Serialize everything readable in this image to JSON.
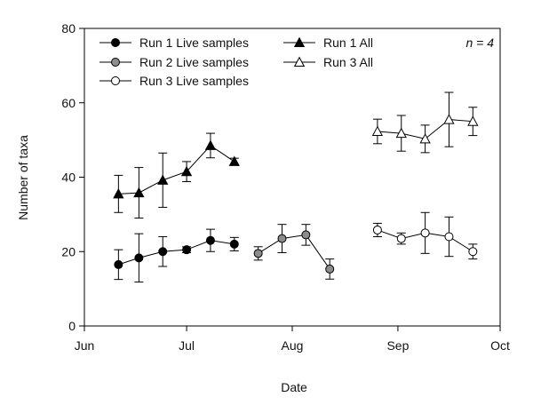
{
  "chart_data": {
    "type": "line",
    "title": "",
    "xlabel": "Date",
    "ylabel": "Number of taxa",
    "ylim": [
      0,
      80
    ],
    "yticks": [
      0,
      20,
      40,
      60,
      80
    ],
    "xlim_days": [
      0,
      122
    ],
    "xticks": [
      {
        "label": "Jun",
        "day": 0
      },
      {
        "label": "Jul",
        "day": 30
      },
      {
        "label": "Aug",
        "day": 61
      },
      {
        "label": "Sep",
        "day": 92
      },
      {
        "label": "Oct",
        "day": 122
      }
    ],
    "x_unit": "days since 1 Jun",
    "annotation": "n = 4",
    "legend_position": "top",
    "series": [
      {
        "name": "Run 1 Live samples",
        "marker": "circle",
        "fill": "#000000",
        "points": [
          {
            "x": 10,
            "y": 16.5,
            "err": 4.0
          },
          {
            "x": 16,
            "y": 18.3,
            "err": 6.5
          },
          {
            "x": 23,
            "y": 20.0,
            "err": 4.0
          },
          {
            "x": 30,
            "y": 20.5,
            "err": 0.8
          },
          {
            "x": 37,
            "y": 23.0,
            "err": 3.0
          },
          {
            "x": 44,
            "y": 22.0,
            "err": 1.8
          }
        ]
      },
      {
        "name": "Run 2 Live samples",
        "marker": "circle",
        "fill": "#8c8c8c",
        "points": [
          {
            "x": 51,
            "y": 19.5,
            "err": 1.8
          },
          {
            "x": 58,
            "y": 23.5,
            "err": 3.8
          },
          {
            "x": 65,
            "y": 24.5,
            "err": 2.8
          },
          {
            "x": 72,
            "y": 15.3,
            "err": 2.7
          }
        ]
      },
      {
        "name": "Run 3 Live samples",
        "marker": "circle",
        "fill": "#ffffff",
        "points": [
          {
            "x": 86,
            "y": 25.8,
            "err": 1.8
          },
          {
            "x": 93,
            "y": 23.5,
            "err": 1.5
          },
          {
            "x": 100,
            "y": 25.0,
            "err": 5.5
          },
          {
            "x": 107,
            "y": 24.0,
            "err": 5.3
          },
          {
            "x": 114,
            "y": 20.0,
            "err": 2.0
          }
        ]
      },
      {
        "name": "Run 1 All",
        "marker": "triangle",
        "fill": "#000000",
        "points": [
          {
            "x": 10,
            "y": 35.5,
            "err": 5.0
          },
          {
            "x": 16,
            "y": 35.8,
            "err": 6.8
          },
          {
            "x": 23,
            "y": 39.2,
            "err": 7.3
          },
          {
            "x": 30,
            "y": 41.5,
            "err": 2.7
          },
          {
            "x": 37,
            "y": 48.5,
            "err": 3.3
          },
          {
            "x": 44,
            "y": 44.2,
            "err": 0.9
          }
        ]
      },
      {
        "name": "Run 3 All",
        "marker": "triangle",
        "fill": "#ffffff",
        "points": [
          {
            "x": 86,
            "y": 52.3,
            "err": 3.3
          },
          {
            "x": 93,
            "y": 51.8,
            "err": 4.8
          },
          {
            "x": 100,
            "y": 50.3,
            "err": 3.7
          },
          {
            "x": 107,
            "y": 55.5,
            "err": 7.3
          },
          {
            "x": 114,
            "y": 55.0,
            "err": 3.8
          }
        ]
      }
    ]
  }
}
